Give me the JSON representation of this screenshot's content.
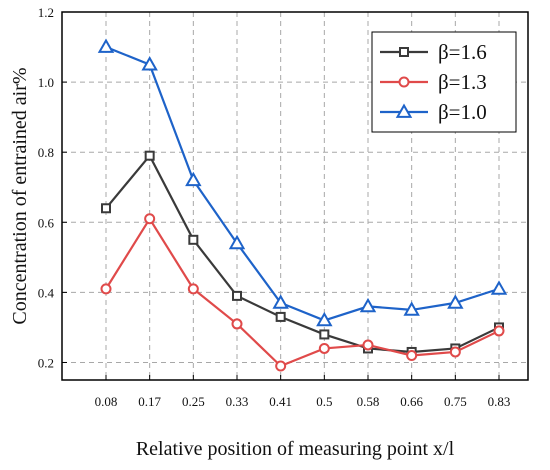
{
  "chart_data": {
    "type": "line",
    "title": "",
    "xlabel": "Relative position of measuring point x/l",
    "ylabel": "Concentration of entrained air%",
    "categories": [
      "0.08",
      "0.17",
      "0.25",
      "0.33",
      "0.41",
      "0.5",
      "0.58",
      "0.66",
      "0.75",
      "0.83"
    ],
    "ylim": [
      0.15,
      1.2
    ],
    "yticks": [
      "0.2",
      "0.4",
      "0.6",
      "0.8",
      "1.0",
      "1.2"
    ],
    "grid": true,
    "legend_position": "top-right",
    "series": [
      {
        "name": "β=1.6",
        "color": "#3a3a3a",
        "marker": "square",
        "values": [
          0.64,
          0.79,
          0.55,
          0.39,
          0.33,
          0.28,
          0.24,
          0.23,
          0.24,
          0.3
        ]
      },
      {
        "name": "β=1.3",
        "color": "#e04a4a",
        "marker": "circle",
        "values": [
          0.41,
          0.61,
          0.41,
          0.31,
          0.19,
          0.24,
          0.25,
          0.22,
          0.23,
          0.29
        ]
      },
      {
        "name": "β=1.0",
        "color": "#1e63c9",
        "marker": "triangle",
        "values": [
          1.1,
          1.05,
          0.72,
          0.54,
          0.37,
          0.32,
          0.36,
          0.35,
          0.37,
          0.41
        ]
      }
    ]
  }
}
